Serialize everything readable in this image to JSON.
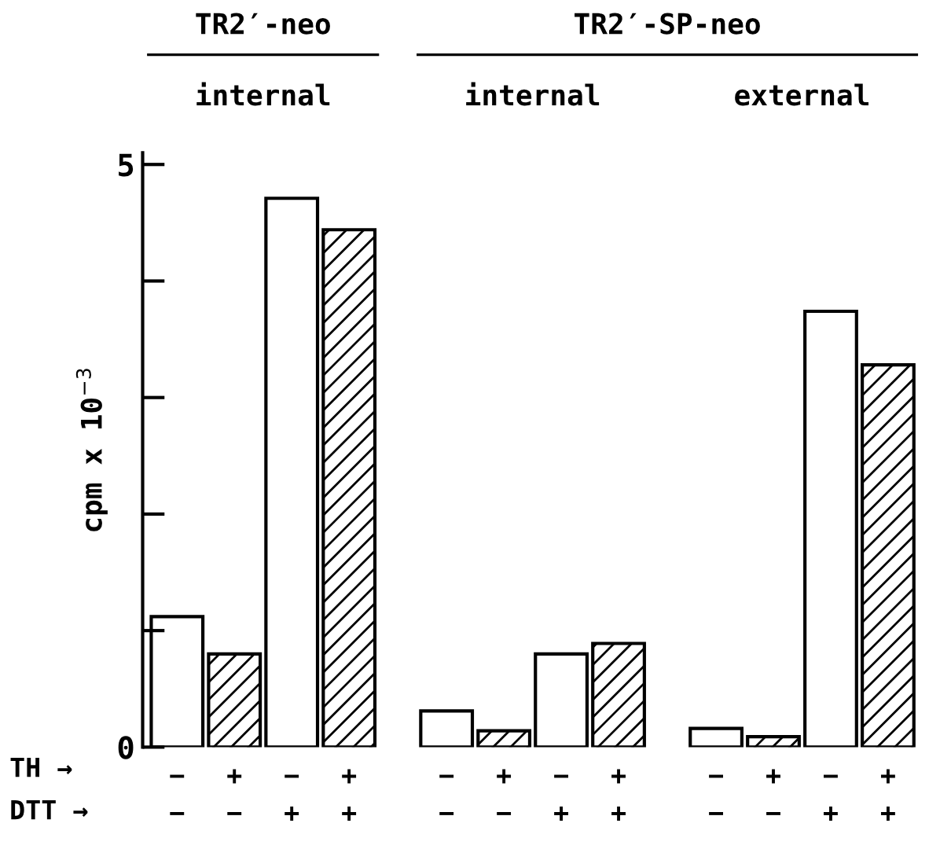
{
  "chart_data": {
    "type": "bar",
    "ylabel": "cpm x 10$^{−3}$",
    "categories": [
      "−\n−",
      "+\n−",
      "−\n+",
      "+\n+",
      "−\n−",
      "+\n−",
      "−\n+",
      "+\n+",
      "−\n−",
      "+\n−",
      "−\n+",
      "+\n+"
    ],
    "series": [
      {
        "color": "#ffffff",
        "values": [
          1.12,
          null,
          4.71,
          null,
          0.31,
          null,
          0.8,
          null,
          0.16,
          null,
          3.74,
          null
        ]
      },
      {
        "color": "#000000",
        "values": [
          null,
          0.8,
          null,
          4.44,
          null,
          0.14,
          null,
          0.89,
          null,
          0.09,
          null,
          3.28
        ]
      }
    ],
    "ylim": [
      0,
      5.1
    ],
    "yticks": [
      0,
      {
        "value": 1,
        "label": null
      },
      {
        "value": 2,
        "label": null
      },
      {
        "value": 3,
        "label": null
      },
      {
        "value": 4,
        "label": null
      },
      5
    ],
    "grid": false,
    "legend": false,
    "annotations": [
      "TR2′-neo",
      "internal",
      "TR2′-SP-neo",
      "internal",
      "external",
      "TH →",
      "DTT →"
    ]
  }
}
